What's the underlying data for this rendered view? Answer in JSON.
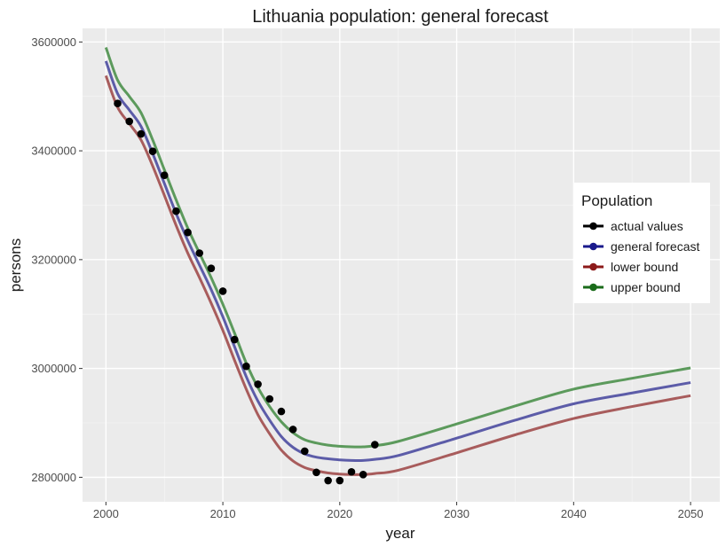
{
  "chart_data": {
    "type": "line",
    "title": "Lithuania population: general forecast",
    "xlabel": "year",
    "ylabel": "persons",
    "xlim": [
      1998,
      2052.5
    ],
    "ylim": [
      2755000,
      3625000
    ],
    "x_ticks": [
      2000,
      2010,
      2020,
      2030,
      2040,
      2050
    ],
    "x_tick_labels": [
      "2000",
      "2010",
      "2020",
      "2030",
      "2040",
      "2050"
    ],
    "y_ticks": [
      2800000,
      3000000,
      3200000,
      3400000,
      3600000
    ],
    "y_tick_labels": [
      "2800000",
      "3000000",
      "3200000",
      "3400000",
      "3600000"
    ],
    "grid": true,
    "legend": {
      "title": "Population",
      "position": "right",
      "entries": [
        "actual values",
        "general forecast",
        "lower bound",
        "upper bound"
      ]
    },
    "series": [
      {
        "name": "general forecast",
        "color": "#5c5ca8",
        "x": [
          2000,
          2001,
          2002,
          2003,
          2004,
          2005,
          2006,
          2007,
          2008,
          2009,
          2010,
          2011,
          2012,
          2013,
          2014,
          2015,
          2016,
          2017,
          2018,
          2019,
          2020,
          2021,
          2022,
          2023,
          2025,
          2030,
          2035,
          2040,
          2045,
          2050
        ],
        "y": [
          3565000,
          3505000,
          3475000,
          3445000,
          3395000,
          3340000,
          3285000,
          3235000,
          3190000,
          3145000,
          3095000,
          3040000,
          2985000,
          2940000,
          2905000,
          2875000,
          2855000,
          2843000,
          2837000,
          2834000,
          2832000,
          2831000,
          2831000,
          2833000,
          2840000,
          2872000,
          2905000,
          2935000,
          2955000,
          2974000
        ]
      },
      {
        "name": "lower bound",
        "color": "#a85c5c",
        "x": [
          2000,
          2001,
          2002,
          2003,
          2004,
          2005,
          2006,
          2007,
          2008,
          2009,
          2010,
          2011,
          2012,
          2013,
          2014,
          2015,
          2016,
          2017,
          2018,
          2019,
          2020,
          2021,
          2022,
          2023,
          2025,
          2030,
          2035,
          2040,
          2045,
          2050
        ],
        "y": [
          3538000,
          3480000,
          3450000,
          3420000,
          3372000,
          3318000,
          3263000,
          3212000,
          3167000,
          3120000,
          3070000,
          3015000,
          2962000,
          2915000,
          2880000,
          2850000,
          2830000,
          2818000,
          2812000,
          2808000,
          2806000,
          2805000,
          2805000,
          2807000,
          2813000,
          2845000,
          2878000,
          2908000,
          2930000,
          2950000
        ]
      },
      {
        "name": "upper bound",
        "color": "#5c9a5c",
        "x": [
          2000,
          2001,
          2002,
          2003,
          2004,
          2005,
          2006,
          2007,
          2008,
          2009,
          2010,
          2011,
          2012,
          2013,
          2014,
          2015,
          2016,
          2017,
          2018,
          2019,
          2020,
          2021,
          2022,
          2023,
          2025,
          2030,
          2035,
          2040,
          2045,
          2050
        ],
        "y": [
          3590000,
          3530000,
          3500000,
          3470000,
          3420000,
          3365000,
          3310000,
          3258000,
          3212000,
          3167000,
          3118000,
          3065000,
          3010000,
          2965000,
          2930000,
          2902000,
          2882000,
          2869000,
          2863000,
          2859000,
          2857000,
          2856000,
          2856000,
          2858000,
          2866000,
          2898000,
          2931000,
          2962000,
          2982000,
          3001000
        ]
      },
      {
        "name": "actual values",
        "color": "#000000",
        "x": [
          2001,
          2002,
          2003,
          2004,
          2005,
          2006,
          2007,
          2008,
          2009,
          2010,
          2011,
          2012,
          2013,
          2014,
          2015,
          2016,
          2017,
          2018,
          2019,
          2020,
          2021,
          2022,
          2023
        ],
        "y": [
          3487000,
          3454000,
          3431000,
          3399000,
          3355000,
          3289000,
          3250000,
          3212000,
          3184000,
          3142000,
          3053000,
          3004000,
          2971000,
          2944000,
          2921000,
          2888000,
          2848000,
          2809000,
          2794000,
          2794000,
          2810000,
          2805000,
          2860000
        ]
      }
    ]
  },
  "legend_colors": {
    "actual values": "#000000",
    "general forecast": "#1a1a8c",
    "lower bound": "#8c1a1a",
    "upper bound": "#1a6b1a"
  }
}
